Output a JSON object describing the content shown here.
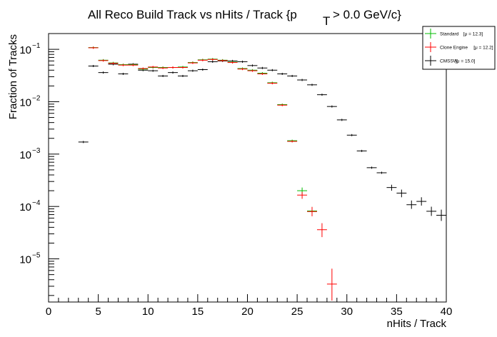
{
  "chart_data": {
    "type": "scatter",
    "title": "All Reco Build Track vs nHits / Track {p",
    "title_sub": "T",
    "title_suffix": "> 0.0 GeV/c}",
    "xlabel": "nHits / Track",
    "ylabel": "Fraction of Tracks",
    "xlim": [
      0,
      40
    ],
    "ylim": [
      1.5e-06,
      0.2
    ],
    "yscale": "log",
    "grid": false,
    "legend_position": "top-right",
    "x_ticks": [
      0,
      5,
      10,
      15,
      20,
      25,
      30,
      35,
      40
    ],
    "x_tick_labels": [
      "0",
      "5",
      "10",
      "15",
      "20",
      "25",
      "30",
      "35",
      "40"
    ],
    "y_ticks": [
      1e-05,
      0.0001,
      0.001,
      0.01,
      0.1
    ],
    "y_tick_bases": [
      "10",
      "10",
      "10",
      "10",
      "10"
    ],
    "y_tick_exps": [
      "−5",
      "−4",
      "−3",
      "−2",
      "−1"
    ],
    "series": [
      {
        "name": "Standard",
        "legend_stat": "[μ = 12.3]",
        "color": "#00bb00",
        "points": [
          {
            "x": 4.5,
            "y": 0.108
          },
          {
            "x": 5.5,
            "y": 0.062
          },
          {
            "x": 6.5,
            "y": 0.055
          },
          {
            "x": 7.5,
            "y": 0.051
          },
          {
            "x": 8.5,
            "y": 0.051
          },
          {
            "x": 9.5,
            "y": 0.042
          },
          {
            "x": 10.5,
            "y": 0.045
          },
          {
            "x": 11.5,
            "y": 0.045
          },
          {
            "x": 12.5,
            "y": 0.045
          },
          {
            "x": 13.5,
            "y": 0.046
          },
          {
            "x": 14.5,
            "y": 0.056
          },
          {
            "x": 15.5,
            "y": 0.063
          },
          {
            "x": 16.5,
            "y": 0.065
          },
          {
            "x": 17.5,
            "y": 0.062
          },
          {
            "x": 18.5,
            "y": 0.057
          },
          {
            "x": 19.5,
            "y": 0.043
          },
          {
            "x": 20.5,
            "y": 0.04
          },
          {
            "x": 21.5,
            "y": 0.035
          },
          {
            "x": 22.5,
            "y": 0.023
          },
          {
            "x": 23.5,
            "y": 0.0088
          },
          {
            "x": 24.5,
            "y": 0.0018
          },
          {
            "x": 25.5,
            "y": 0.0002,
            "err": [
              0.00017,
              0.00023
            ]
          },
          {
            "x": 26.5,
            "y": 8.2e-05,
            "err": [
              6.8e-05,
              9.8e-05
            ]
          }
        ]
      },
      {
        "name": "Clone Engine",
        "legend_stat": "[μ = 12.2]",
        "color": "#ff0000",
        "points": [
          {
            "x": 4.5,
            "y": 0.107
          },
          {
            "x": 5.5,
            "y": 0.061
          },
          {
            "x": 6.5,
            "y": 0.054
          },
          {
            "x": 7.5,
            "y": 0.05
          },
          {
            "x": 8.5,
            "y": 0.05
          },
          {
            "x": 9.5,
            "y": 0.043
          },
          {
            "x": 10.5,
            "y": 0.046
          },
          {
            "x": 11.5,
            "y": 0.044
          },
          {
            "x": 12.5,
            "y": 0.045
          },
          {
            "x": 13.5,
            "y": 0.045
          },
          {
            "x": 14.5,
            "y": 0.055
          },
          {
            "x": 15.5,
            "y": 0.062
          },
          {
            "x": 16.5,
            "y": 0.064
          },
          {
            "x": 17.5,
            "y": 0.061
          },
          {
            "x": 18.5,
            "y": 0.056
          },
          {
            "x": 19.5,
            "y": 0.042
          },
          {
            "x": 20.5,
            "y": 0.039
          },
          {
            "x": 21.5,
            "y": 0.034
          },
          {
            "x": 22.5,
            "y": 0.0225
          },
          {
            "x": 23.5,
            "y": 0.0086
          },
          {
            "x": 24.5,
            "y": 0.00175
          },
          {
            "x": 25.5,
            "y": 0.000165,
            "err": [
              0.00014,
              0.00019
            ]
          },
          {
            "x": 26.5,
            "y": 8e-05,
            "err": [
              6.5e-05,
              9.8e-05
            ]
          },
          {
            "x": 27.5,
            "y": 3.6e-05,
            "err": [
              2.6e-05,
              4.8e-05
            ]
          },
          {
            "x": 28.5,
            "y": 3.3e-06,
            "err": [
              1.6e-06,
              6.5e-06
            ]
          }
        ]
      },
      {
        "name": "CMSSW",
        "legend_stat": "[μ = 15.0]",
        "color": "#000000",
        "points": [
          {
            "x": 3.5,
            "y": 0.0017
          },
          {
            "x": 4.5,
            "y": 0.048
          },
          {
            "x": 5.5,
            "y": 0.036
          },
          {
            "x": 6.5,
            "y": 0.052
          },
          {
            "x": 7.5,
            "y": 0.034
          },
          {
            "x": 8.5,
            "y": 0.052
          },
          {
            "x": 9.5,
            "y": 0.04
          },
          {
            "x": 10.5,
            "y": 0.039
          },
          {
            "x": 11.5,
            "y": 0.031
          },
          {
            "x": 12.5,
            "y": 0.036
          },
          {
            "x": 13.5,
            "y": 0.031
          },
          {
            "x": 14.5,
            "y": 0.039
          },
          {
            "x": 15.5,
            "y": 0.041
          },
          {
            "x": 16.5,
            "y": 0.058
          },
          {
            "x": 17.5,
            "y": 0.06
          },
          {
            "x": 18.5,
            "y": 0.06
          },
          {
            "x": 19.5,
            "y": 0.058
          },
          {
            "x": 20.5,
            "y": 0.049
          },
          {
            "x": 21.5,
            "y": 0.044
          },
          {
            "x": 22.5,
            "y": 0.04
          },
          {
            "x": 23.5,
            "y": 0.034
          },
          {
            "x": 24.5,
            "y": 0.031
          },
          {
            "x": 25.5,
            "y": 0.026
          },
          {
            "x": 26.5,
            "y": 0.021
          },
          {
            "x": 27.5,
            "y": 0.0136
          },
          {
            "x": 28.5,
            "y": 0.0081
          },
          {
            "x": 29.5,
            "y": 0.0045
          },
          {
            "x": 30.5,
            "y": 0.0023
          },
          {
            "x": 31.5,
            "y": 0.00115
          },
          {
            "x": 32.5,
            "y": 0.00055
          },
          {
            "x": 33.5,
            "y": 0.00044
          },
          {
            "x": 34.5,
            "y": 0.00023,
            "err": [
              0.0002,
              0.00026
            ]
          },
          {
            "x": 35.5,
            "y": 0.00018,
            "err": [
              0.00015,
              0.00021
            ]
          },
          {
            "x": 36.5,
            "y": 0.000108,
            "err": [
              9e-05,
              0.00013
            ]
          },
          {
            "x": 37.5,
            "y": 0.000125,
            "err": [
              0.000104,
              0.00015
            ]
          },
          {
            "x": 38.5,
            "y": 8.1e-05,
            "err": [
              6.6e-05,
              9.9e-05
            ]
          },
          {
            "x": 39.5,
            "y": 6.8e-05,
            "err": [
              5.3e-05,
              8.7e-05
            ]
          }
        ]
      }
    ]
  }
}
